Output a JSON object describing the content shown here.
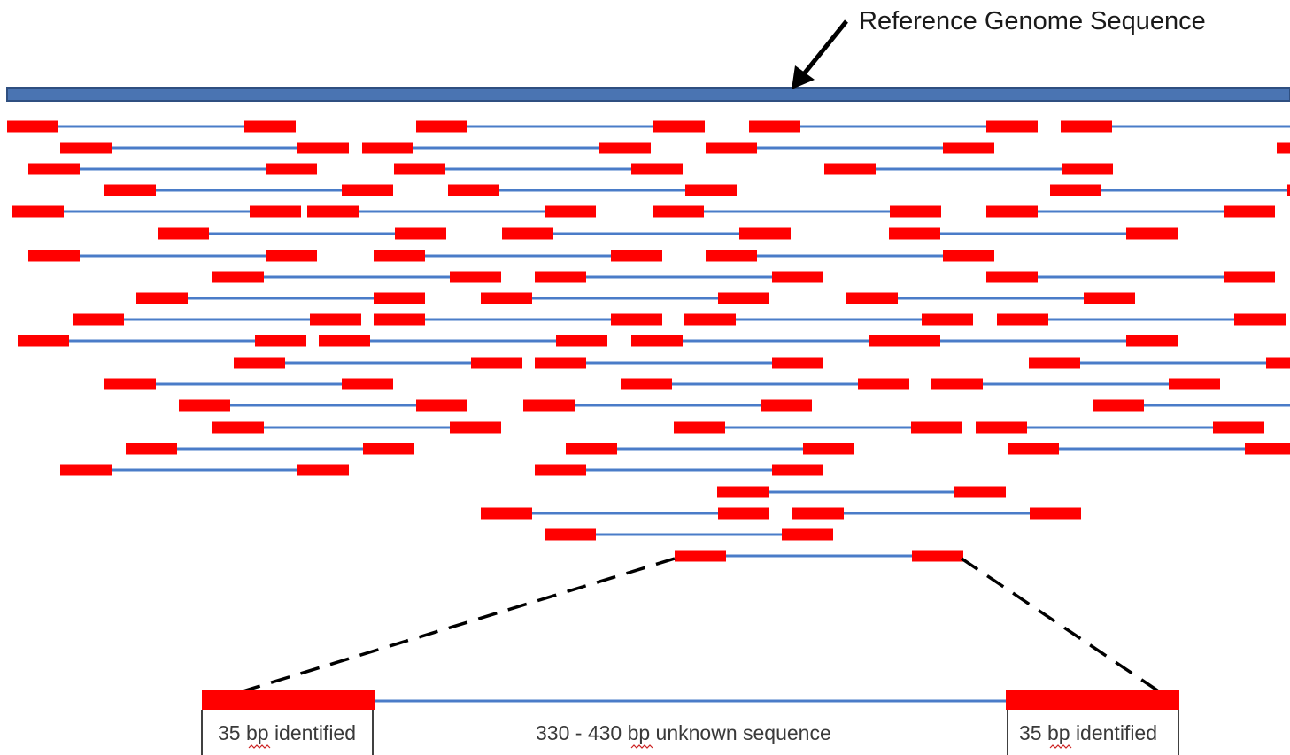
{
  "labels": {
    "title": "Reference Genome Sequence",
    "left_read": "35 bp identified",
    "middle": "330 - 430 bp unknown sequence",
    "right_read": "35 bp identified"
  },
  "colors": {
    "reference": "#4a74b2",
    "reference_edge": "#2f4f80",
    "insert_line": "#4a7cc8",
    "read": "#ff0000",
    "leader": "#000000",
    "text": "#1a1a1a",
    "spellcheck": "#cc2222"
  }
}
